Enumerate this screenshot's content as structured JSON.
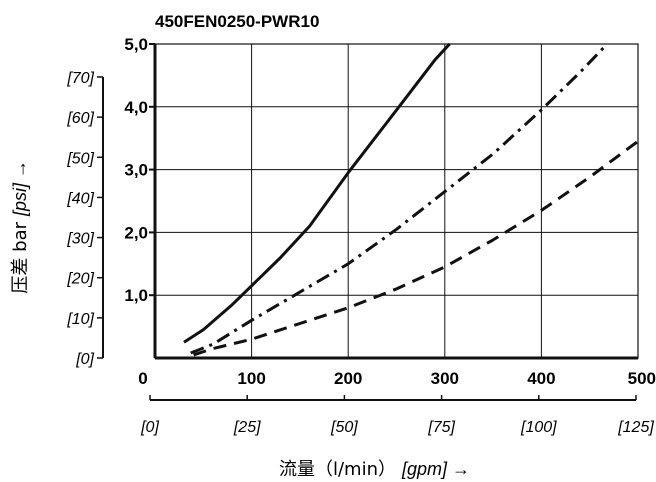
{
  "chart_data": {
    "type": "line",
    "title": "450FEN0250-PWR10",
    "xlabel": "流量（l/min）",
    "xlabel_secondary": "[gpm] →",
    "ylabel": "压差 bar",
    "ylabel_secondary": "[psi] →",
    "xlim": [
      0,
      500
    ],
    "ylim": [
      0,
      5
    ],
    "x_ticks": [
      {
        "value": 0,
        "label": "0"
      },
      {
        "value": 100,
        "label": "100"
      },
      {
        "value": 200,
        "label": "200"
      },
      {
        "value": 300,
        "label": "300"
      },
      {
        "value": 400,
        "label": "400"
      },
      {
        "value": 500,
        "label": "500"
      }
    ],
    "y_ticks": [
      {
        "value": 1,
        "label": "1,0"
      },
      {
        "value": 2,
        "label": "2,0"
      },
      {
        "value": 3,
        "label": "3,0"
      },
      {
        "value": 4,
        "label": "4,0"
      },
      {
        "value": 5,
        "label": "5,0"
      }
    ],
    "x2_ticks": [
      {
        "value": 0,
        "label": "[0]"
      },
      {
        "value": 25,
        "label": "[25]"
      },
      {
        "value": 50,
        "label": "[50]"
      },
      {
        "value": 75,
        "label": "[75]"
      },
      {
        "value": 100,
        "label": "[100]"
      },
      {
        "value": 125,
        "label": "[125]"
      }
    ],
    "y2_ticks": [
      {
        "value": 0,
        "label": "[0]"
      },
      {
        "value": 10,
        "label": "[10]"
      },
      {
        "value": 20,
        "label": "[20]"
      },
      {
        "value": 30,
        "label": "[30]"
      },
      {
        "value": 40,
        "label": "[40]"
      },
      {
        "value": 50,
        "label": "[50]"
      },
      {
        "value": 60,
        "label": "[60]"
      },
      {
        "value": 70,
        "label": "[70]"
      }
    ],
    "grid": true,
    "series": [
      {
        "style": "solid",
        "x": [
          30,
          50,
          80,
          100,
          130,
          160,
          200,
          230,
          260,
          290,
          305
        ],
        "y": [
          0.25,
          0.45,
          0.85,
          1.15,
          1.6,
          2.1,
          2.95,
          3.55,
          4.15,
          4.75,
          5.0
        ]
      },
      {
        "style": "dashdot",
        "x": [
          37,
          60,
          100,
          150,
          200,
          250,
          300,
          350,
          400,
          440,
          465
        ],
        "y": [
          0.08,
          0.22,
          0.6,
          1.05,
          1.5,
          2.05,
          2.65,
          3.25,
          3.95,
          4.55,
          4.95
        ]
      },
      {
        "style": "dashed",
        "x": [
          40,
          60,
          100,
          150,
          200,
          250,
          300,
          350,
          400,
          450,
          500
        ],
        "y": [
          0.05,
          0.15,
          0.3,
          0.55,
          0.8,
          1.1,
          1.45,
          1.88,
          2.35,
          2.88,
          3.45
        ]
      }
    ]
  }
}
